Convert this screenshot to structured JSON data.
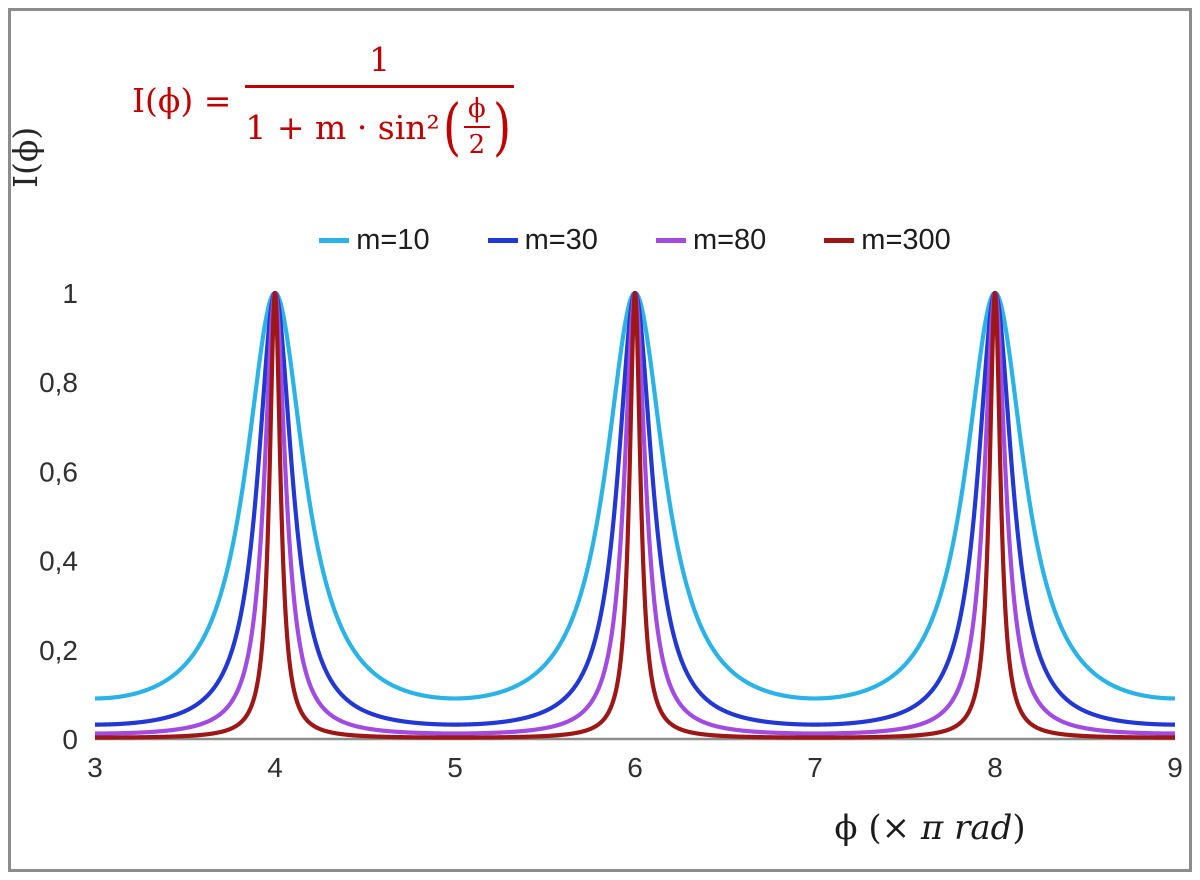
{
  "chart_data": {
    "type": "line",
    "title": "",
    "formula_display": {
      "lhs": "I(ϕ) =",
      "numerator": "1",
      "denom_prefix": "1 + m · sin²",
      "inner_num": "ϕ",
      "inner_den": "2",
      "open_paren": "(",
      "close_paren": ")"
    },
    "function": "I(x) = 1 / (1 + m * sin^2(pi*x/2)), x in units of pi rad",
    "xlabel_phi": "ϕ",
    "xlabel_open": "  (× ",
    "xlabel_italic": "π rad",
    "xlabel_close": ")",
    "ylabel": "I(ϕ)",
    "xlim": [
      3,
      9
    ],
    "ylim": [
      0,
      1
    ],
    "x_ticks": [
      {
        "value": 3,
        "label": "3"
      },
      {
        "value": 4,
        "label": "4"
      },
      {
        "value": 5,
        "label": "5"
      },
      {
        "value": 6,
        "label": "6"
      },
      {
        "value": 7,
        "label": "7"
      },
      {
        "value": 8,
        "label": "8"
      },
      {
        "value": 9,
        "label": "9"
      }
    ],
    "y_ticks": [
      {
        "value": 0,
        "label": "0"
      },
      {
        "value": 0.2,
        "label": "0,2"
      },
      {
        "value": 0.4,
        "label": "0,4"
      },
      {
        "value": 0.6,
        "label": "0,6"
      },
      {
        "value": 0.8,
        "label": "0,8"
      },
      {
        "value": 1,
        "label": "1"
      }
    ],
    "series": [
      {
        "name": "m=10",
        "m": 10,
        "color": "#2BB3E8"
      },
      {
        "name": "m=30",
        "m": 30,
        "color": "#2238D4"
      },
      {
        "name": "m=80",
        "m": 80,
        "color": "#A14BE3"
      },
      {
        "name": "m=300",
        "m": 300,
        "color": "#9E1717"
      }
    ],
    "peaks_at_x": [
      4,
      6,
      8
    ],
    "grid": "off",
    "legend_position": "top-center",
    "colors": {
      "axis": "#8c8c8c",
      "frame": "#8c8c8c",
      "tick_text": "#303030",
      "formula": "#C00000",
      "background": "#ffffff"
    }
  }
}
